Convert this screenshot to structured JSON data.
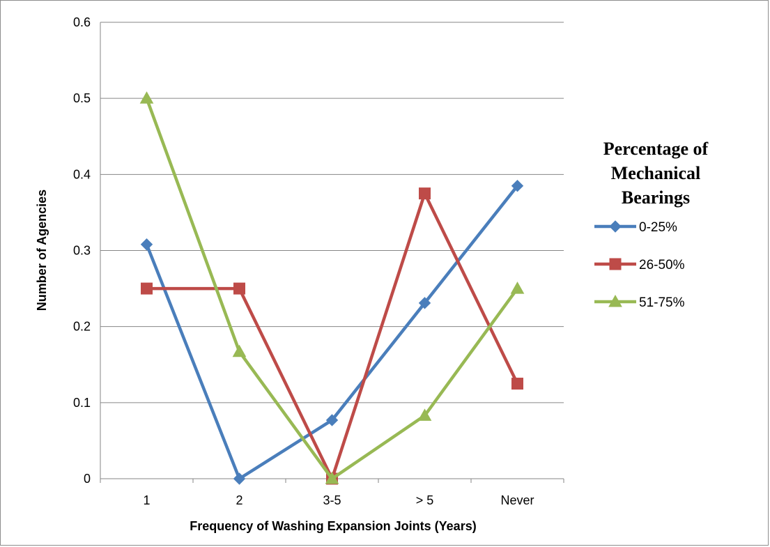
{
  "chart_data": {
    "type": "line",
    "categories": [
      "1",
      "2",
      "3-5",
      "> 5",
      "Never"
    ],
    "ylim": [
      0,
      0.6
    ],
    "yticks": [
      0,
      0.1,
      0.2,
      0.3,
      0.4,
      0.5,
      0.6
    ],
    "ytick_labels": [
      "0",
      "0.1",
      "0.2",
      "0.3",
      "0.4",
      "0.5",
      "0.6"
    ],
    "xlabel": "Frequency of Washing Expansion Joints (Years)",
    "ylabel": "Number of Agencies",
    "grid": "horizontal",
    "legend": {
      "title_lines": [
        "Percentage of",
        "Mechanical",
        "Bearings"
      ],
      "placement": "right"
    },
    "series": [
      {
        "name": "0-25%",
        "color": "#4a7ebb",
        "marker": "diamond",
        "values": [
          0.308,
          0,
          0.077,
          0.231,
          0.385
        ]
      },
      {
        "name": "26-50%",
        "color": "#be4b48",
        "marker": "square",
        "values": [
          0.25,
          0.25,
          0,
          0.375,
          0.125
        ]
      },
      {
        "name": "51-75%",
        "color": "#98b954",
        "marker": "triangle",
        "values": [
          0.5,
          0.167,
          0,
          0.083,
          0.25
        ]
      }
    ]
  }
}
